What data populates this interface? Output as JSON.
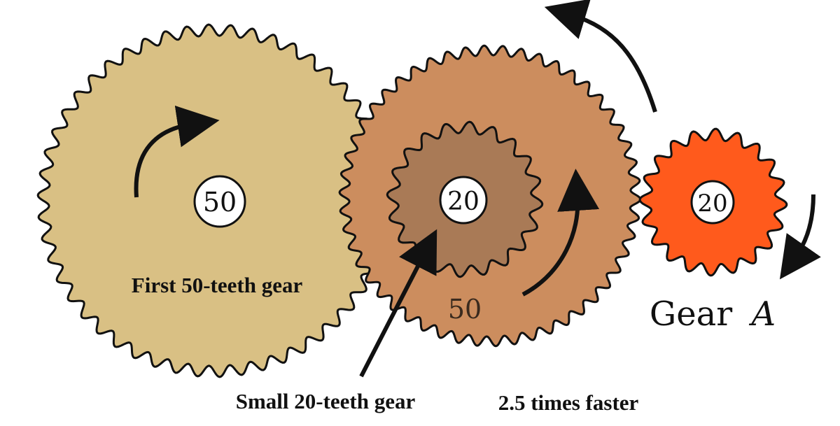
{
  "colors": {
    "gear_large_first": "#D9C084",
    "gear_large_second": "#CC8D5E",
    "gear_small_compound": "#A97A56",
    "gear_a": "#FF5A1C",
    "outline": "#111111",
    "badge_fill": "#ffffff"
  },
  "gears": {
    "first": {
      "teeth": 50,
      "badge": "50"
    },
    "second": {
      "teeth": 50,
      "label": "50"
    },
    "small": {
      "teeth": 20,
      "badge": "20"
    },
    "gear_a": {
      "teeth": 20,
      "badge": "20"
    }
  },
  "labels": {
    "first_gear": "First 50-teeth gear",
    "small_gear": "Small 20-teeth gear",
    "faster": "2.5 times faster",
    "gear_a_prefix": "Gear",
    "gear_a_var": "A"
  },
  "icons": {
    "rotation_arrow": "curved-arrow-icon",
    "pointer_arrow": "straight-arrow-icon"
  }
}
